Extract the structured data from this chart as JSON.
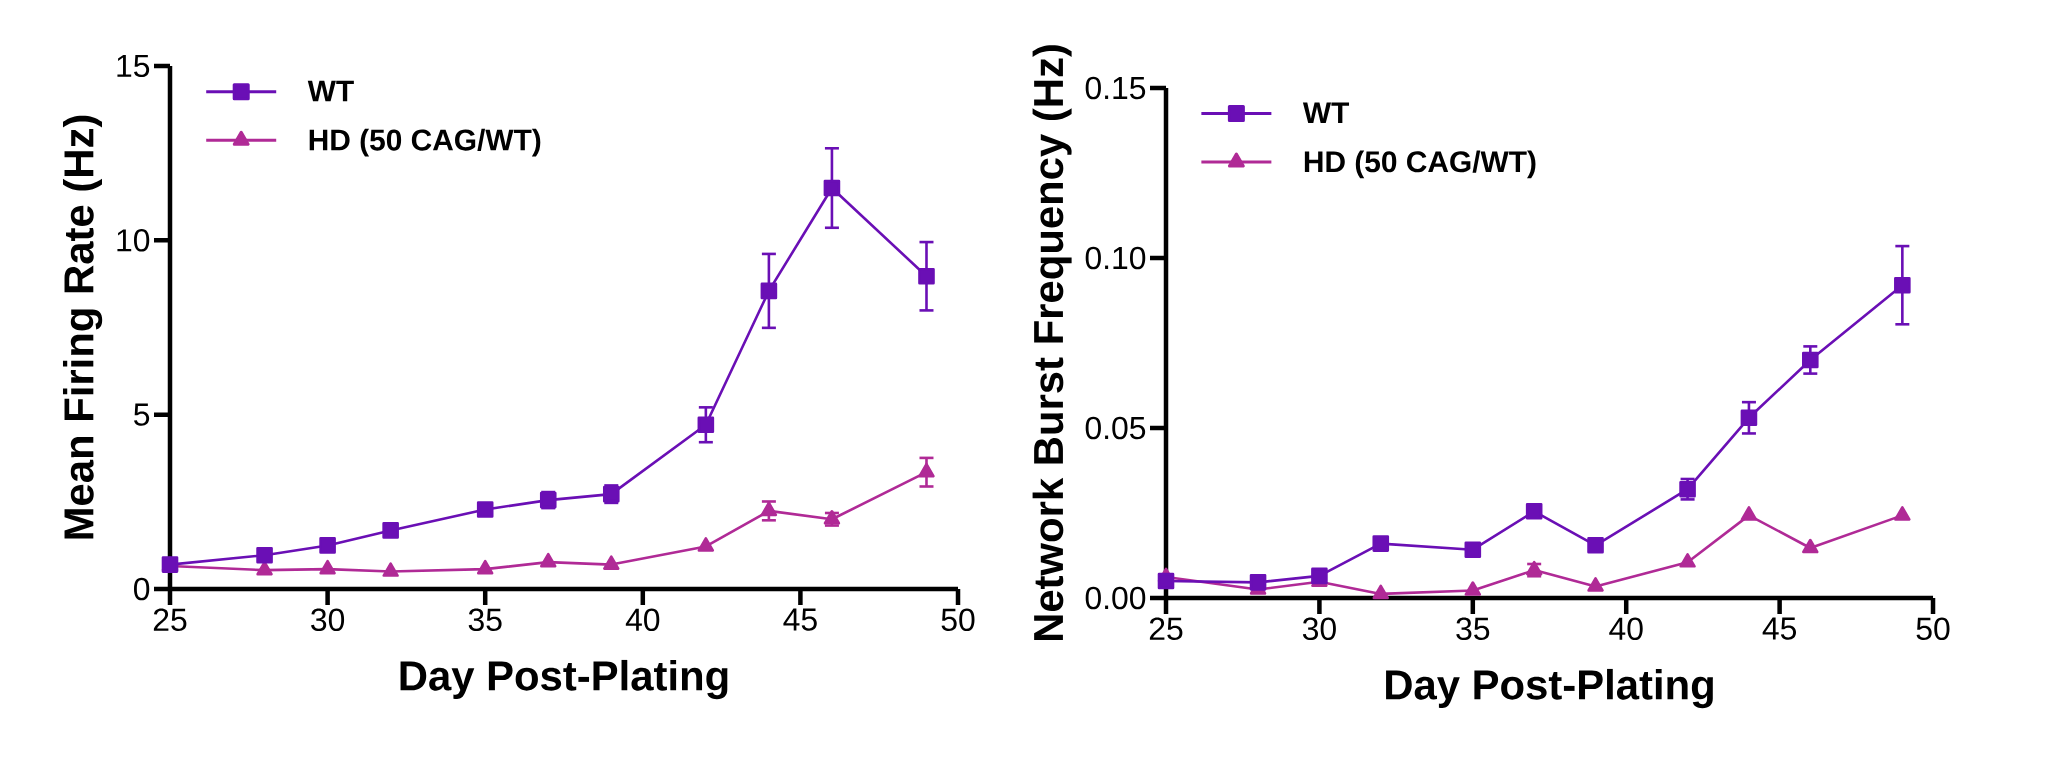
{
  "chart_data": [
    {
      "type": "line",
      "xlabel": "Day Post-Plating",
      "ylabel": "Mean Firing Rate (Hz)",
      "x": [
        25,
        28,
        30,
        32,
        35,
        37,
        39,
        42,
        44,
        46,
        49
      ],
      "series": [
        {
          "name": "WT",
          "color": "#6a0fb5",
          "marker": "square",
          "values": [
            0.7,
            0.97,
            1.25,
            1.68,
            2.28,
            2.55,
            2.72,
            4.71,
            8.55,
            11.5,
            8.97
          ],
          "errors": [
            null,
            null,
            null,
            null,
            0.15,
            0.23,
            0.25,
            0.5,
            1.06,
            1.14,
            0.98
          ]
        },
        {
          "name": "HD (50 CAG/WT)",
          "color": "#b02a96",
          "marker": "triangle",
          "values": [
            0.66,
            0.54,
            0.57,
            0.5,
            0.57,
            0.77,
            0.7,
            1.22,
            2.24,
            2.0,
            3.35
          ],
          "errors": [
            null,
            null,
            null,
            null,
            null,
            null,
            null,
            null,
            0.27,
            0.18,
            0.41
          ]
        }
      ],
      "xlim": [
        25,
        50
      ],
      "xticks": [
        25,
        30,
        35,
        40,
        45,
        50
      ],
      "ylim": [
        0,
        15
      ],
      "yticks": [
        0,
        5,
        10,
        15
      ],
      "legend": "top left",
      "grid": false,
      "line_style": "solid"
    },
    {
      "type": "line",
      "xlabel": "Day Post-Plating",
      "ylabel": "Network Burst Frequency (Hz)",
      "x": [
        25,
        28,
        30,
        32,
        35,
        37,
        39,
        42,
        44,
        46,
        49
      ],
      "series": [
        {
          "name": "WT",
          "color": "#6a0fb5",
          "marker": "square",
          "values": [
            0.005,
            0.0046,
            0.0065,
            0.016,
            0.0142,
            0.0255,
            0.0155,
            0.032,
            0.053,
            0.07,
            0.092
          ],
          "errors": [
            null,
            null,
            null,
            null,
            null,
            null,
            null,
            0.003,
            0.0046,
            0.004,
            0.0115
          ]
        },
        {
          "name": "HD (50 CAG/WT)",
          "color": "#b02a96",
          "marker": "triangle",
          "values": [
            0.0062,
            0.0025,
            0.0048,
            0.0012,
            0.0022,
            0.0082,
            0.0034,
            0.0105,
            0.0243,
            0.0147,
            0.0243
          ],
          "errors": [
            null,
            null,
            null,
            null,
            null,
            0.0018,
            null,
            null,
            null,
            null,
            null
          ]
        }
      ],
      "xlim": [
        25,
        50
      ],
      "xticks": [
        25,
        30,
        35,
        40,
        45,
        50
      ],
      "ylim": [
        0,
        0.15
      ],
      "yticks": [
        {
          "value": 0,
          "label": "0.00"
        },
        {
          "value": 0.05,
          "label": "0.05"
        },
        {
          "value": 0.1,
          "label": "0.10"
        },
        {
          "value": 0.15,
          "label": "0.15"
        }
      ],
      "legend": "top left",
      "grid": false,
      "line_style": "solid"
    }
  ]
}
